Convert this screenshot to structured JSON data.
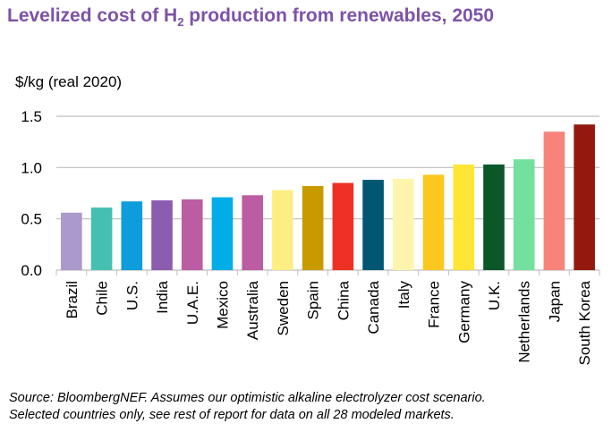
{
  "title": {
    "prefix": "Levelized cost of H",
    "sub": "2",
    "suffix": " production from renewables, 2050"
  },
  "source": [
    "Source: BloombergNEF. Assumes our optimistic alkaline electrolyzer cost scenario.",
    "Selected countries only, see rest of report for data on all 28 modeled markets."
  ],
  "chart_data": {
    "type": "bar",
    "ylabel": "$/kg (real 2020)",
    "ylim": [
      0,
      1.5
    ],
    "yticks": [
      "0.0",
      "0.5",
      "1.0",
      "1.5"
    ],
    "grid": true,
    "categories": [
      "Brazil",
      "Chile",
      "U.S.",
      "India",
      "U.A.E.",
      "Mexico",
      "Australia",
      "Sweden",
      "Spain",
      "China",
      "Canada",
      "Italy",
      "France",
      "Germany",
      "U.K.",
      "Netherlands",
      "Japan",
      "South Korea"
    ],
    "values": [
      0.56,
      0.61,
      0.67,
      0.68,
      0.69,
      0.71,
      0.73,
      0.78,
      0.82,
      0.85,
      0.88,
      0.89,
      0.93,
      1.03,
      1.03,
      1.08,
      1.35,
      1.42
    ],
    "colors": [
      "#ac99cb",
      "#45c0b0",
      "#0e9cdc",
      "#8b5db1",
      "#bc5ca2",
      "#00ade6",
      "#bc5ca2",
      "#fdee84",
      "#c99a00",
      "#ee3124",
      "#005673",
      "#fef4ad",
      "#fcc81f",
      "#ffe535",
      "#0b5728",
      "#73e19d",
      "#f7837b",
      "#95180e"
    ]
  }
}
